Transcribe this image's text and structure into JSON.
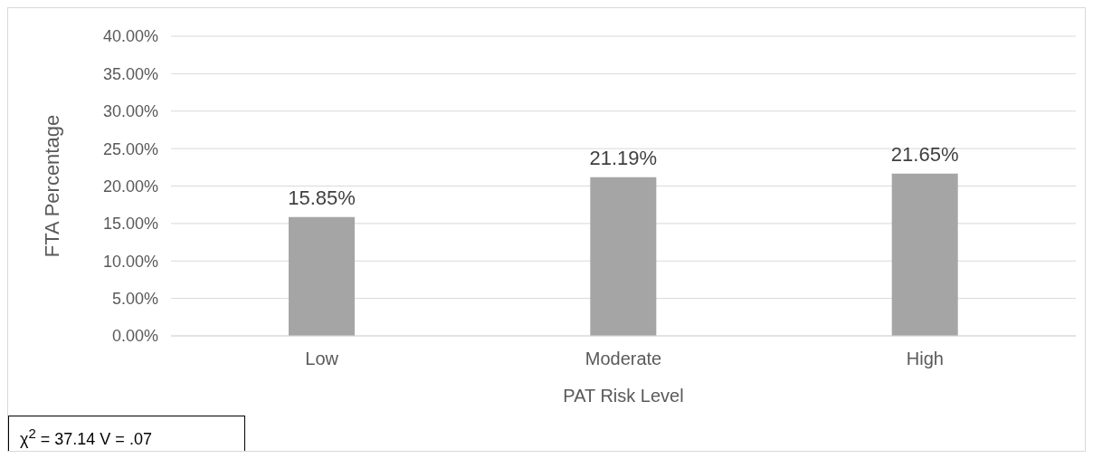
{
  "chart_data": {
    "type": "bar",
    "xlabel": "PAT Risk Level",
    "ylabel": "FTA Percentage",
    "categories": [
      "Low",
      "Moderate",
      "High"
    ],
    "values": [
      15.85,
      21.19,
      21.65
    ],
    "value_labels": [
      "15.85%",
      "21.19%",
      "21.65%"
    ],
    "color": "#a5a5a5",
    "ylim": [
      0,
      40
    ],
    "yticks": [
      {
        "value": 0,
        "label": "0.00%"
      },
      {
        "value": 5,
        "label": "5.00%"
      },
      {
        "value": 10,
        "label": "10.00%"
      },
      {
        "value": 15,
        "label": "15.00%"
      },
      {
        "value": 20,
        "label": "20.00%"
      },
      {
        "value": 25,
        "label": "25.00%"
      },
      {
        "value": 30,
        "label": "30.00%"
      },
      {
        "value": 35,
        "label": "35.00%"
      },
      {
        "value": 40,
        "label": "40.00%"
      }
    ],
    "grid": "y",
    "annotations": [
      "χ$^{2}$ = 37.14 V = .07"
    ]
  }
}
